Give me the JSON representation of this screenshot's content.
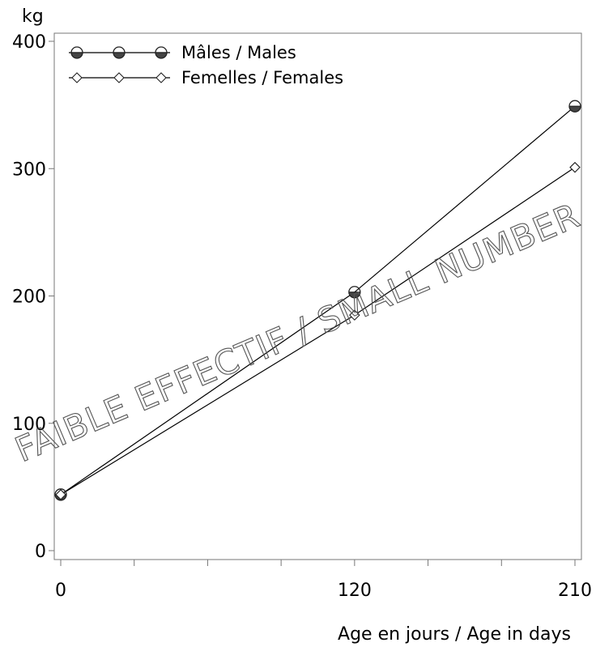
{
  "chart_data": {
    "type": "line",
    "x": [
      0,
      120,
      210
    ],
    "xlabel": "Age en jours / Age in days",
    "ylabel": "kg",
    "xlim": [
      0,
      210
    ],
    "ylim": [
      0,
      400
    ],
    "x_ticks": [
      0,
      120,
      210
    ],
    "x_minor_ticks": [
      0,
      30,
      60,
      90,
      120,
      150,
      180,
      210
    ],
    "y_ticks": [
      0,
      100,
      200,
      300,
      400
    ],
    "grid": false,
    "legend_placement": "top-left",
    "series": [
      {
        "name": "Mâles / Males",
        "marker": "half-filled-circle",
        "values": [
          44,
          203,
          349
        ]
      },
      {
        "name": "Femelles / Females",
        "marker": "open-diamond",
        "values": [
          44,
          185,
          301
        ]
      }
    ],
    "watermark": "FAIBLE EFFECTIF / SMALL NUMBER"
  }
}
